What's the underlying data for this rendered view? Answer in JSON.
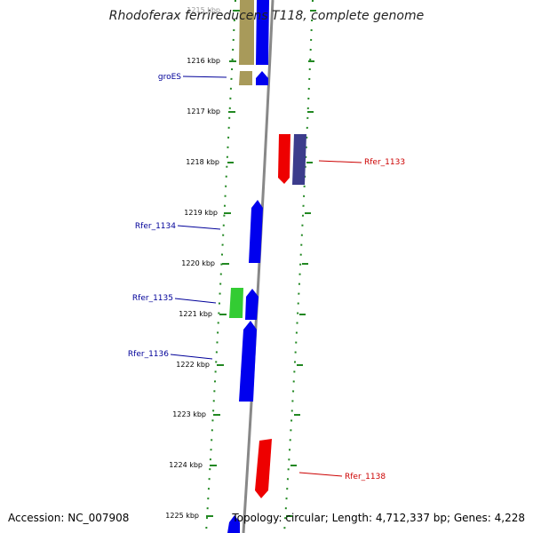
{
  "title": "Rhodoferax ferrireducens T118, complete genome",
  "footer": {
    "accession": "Accession: NC_007908",
    "topology": "Topology: circular; Length: 4,712,337 bp; Genes: 4,228"
  },
  "colors": {
    "forward_gene": "#0000ee",
    "reverse_gene": "#ee0000",
    "rrna_like": "#a89a5a",
    "other_gene": "#33cc33",
    "purple_gene": "#3c3c8c",
    "tick": "#228822",
    "backbone": "#888888",
    "label_forward": "#000099",
    "label_reverse": "#cc0000"
  },
  "ruler": [
    {
      "label": "1215 kbp"
    },
    {
      "label": "1216 kbp"
    },
    {
      "label": "1217 kbp"
    },
    {
      "label": "1218 kbp"
    },
    {
      "label": "1219 kbp"
    },
    {
      "label": "1220 kbp"
    },
    {
      "label": "1221 kbp"
    },
    {
      "label": "1222 kbp"
    },
    {
      "label": "1223 kbp"
    },
    {
      "label": "1224 kbp"
    },
    {
      "label": "1225 kbp"
    }
  ],
  "gene_labels": [
    {
      "name": "groES",
      "strand": "forward"
    },
    {
      "name": "Rfer_1133",
      "strand": "reverse"
    },
    {
      "name": "Rfer_1134",
      "strand": "forward"
    },
    {
      "name": "Rfer_1135",
      "strand": "forward"
    },
    {
      "name": "Rfer_1136",
      "strand": "forward"
    },
    {
      "name": "Rfer_1138",
      "strand": "reverse"
    }
  ]
}
